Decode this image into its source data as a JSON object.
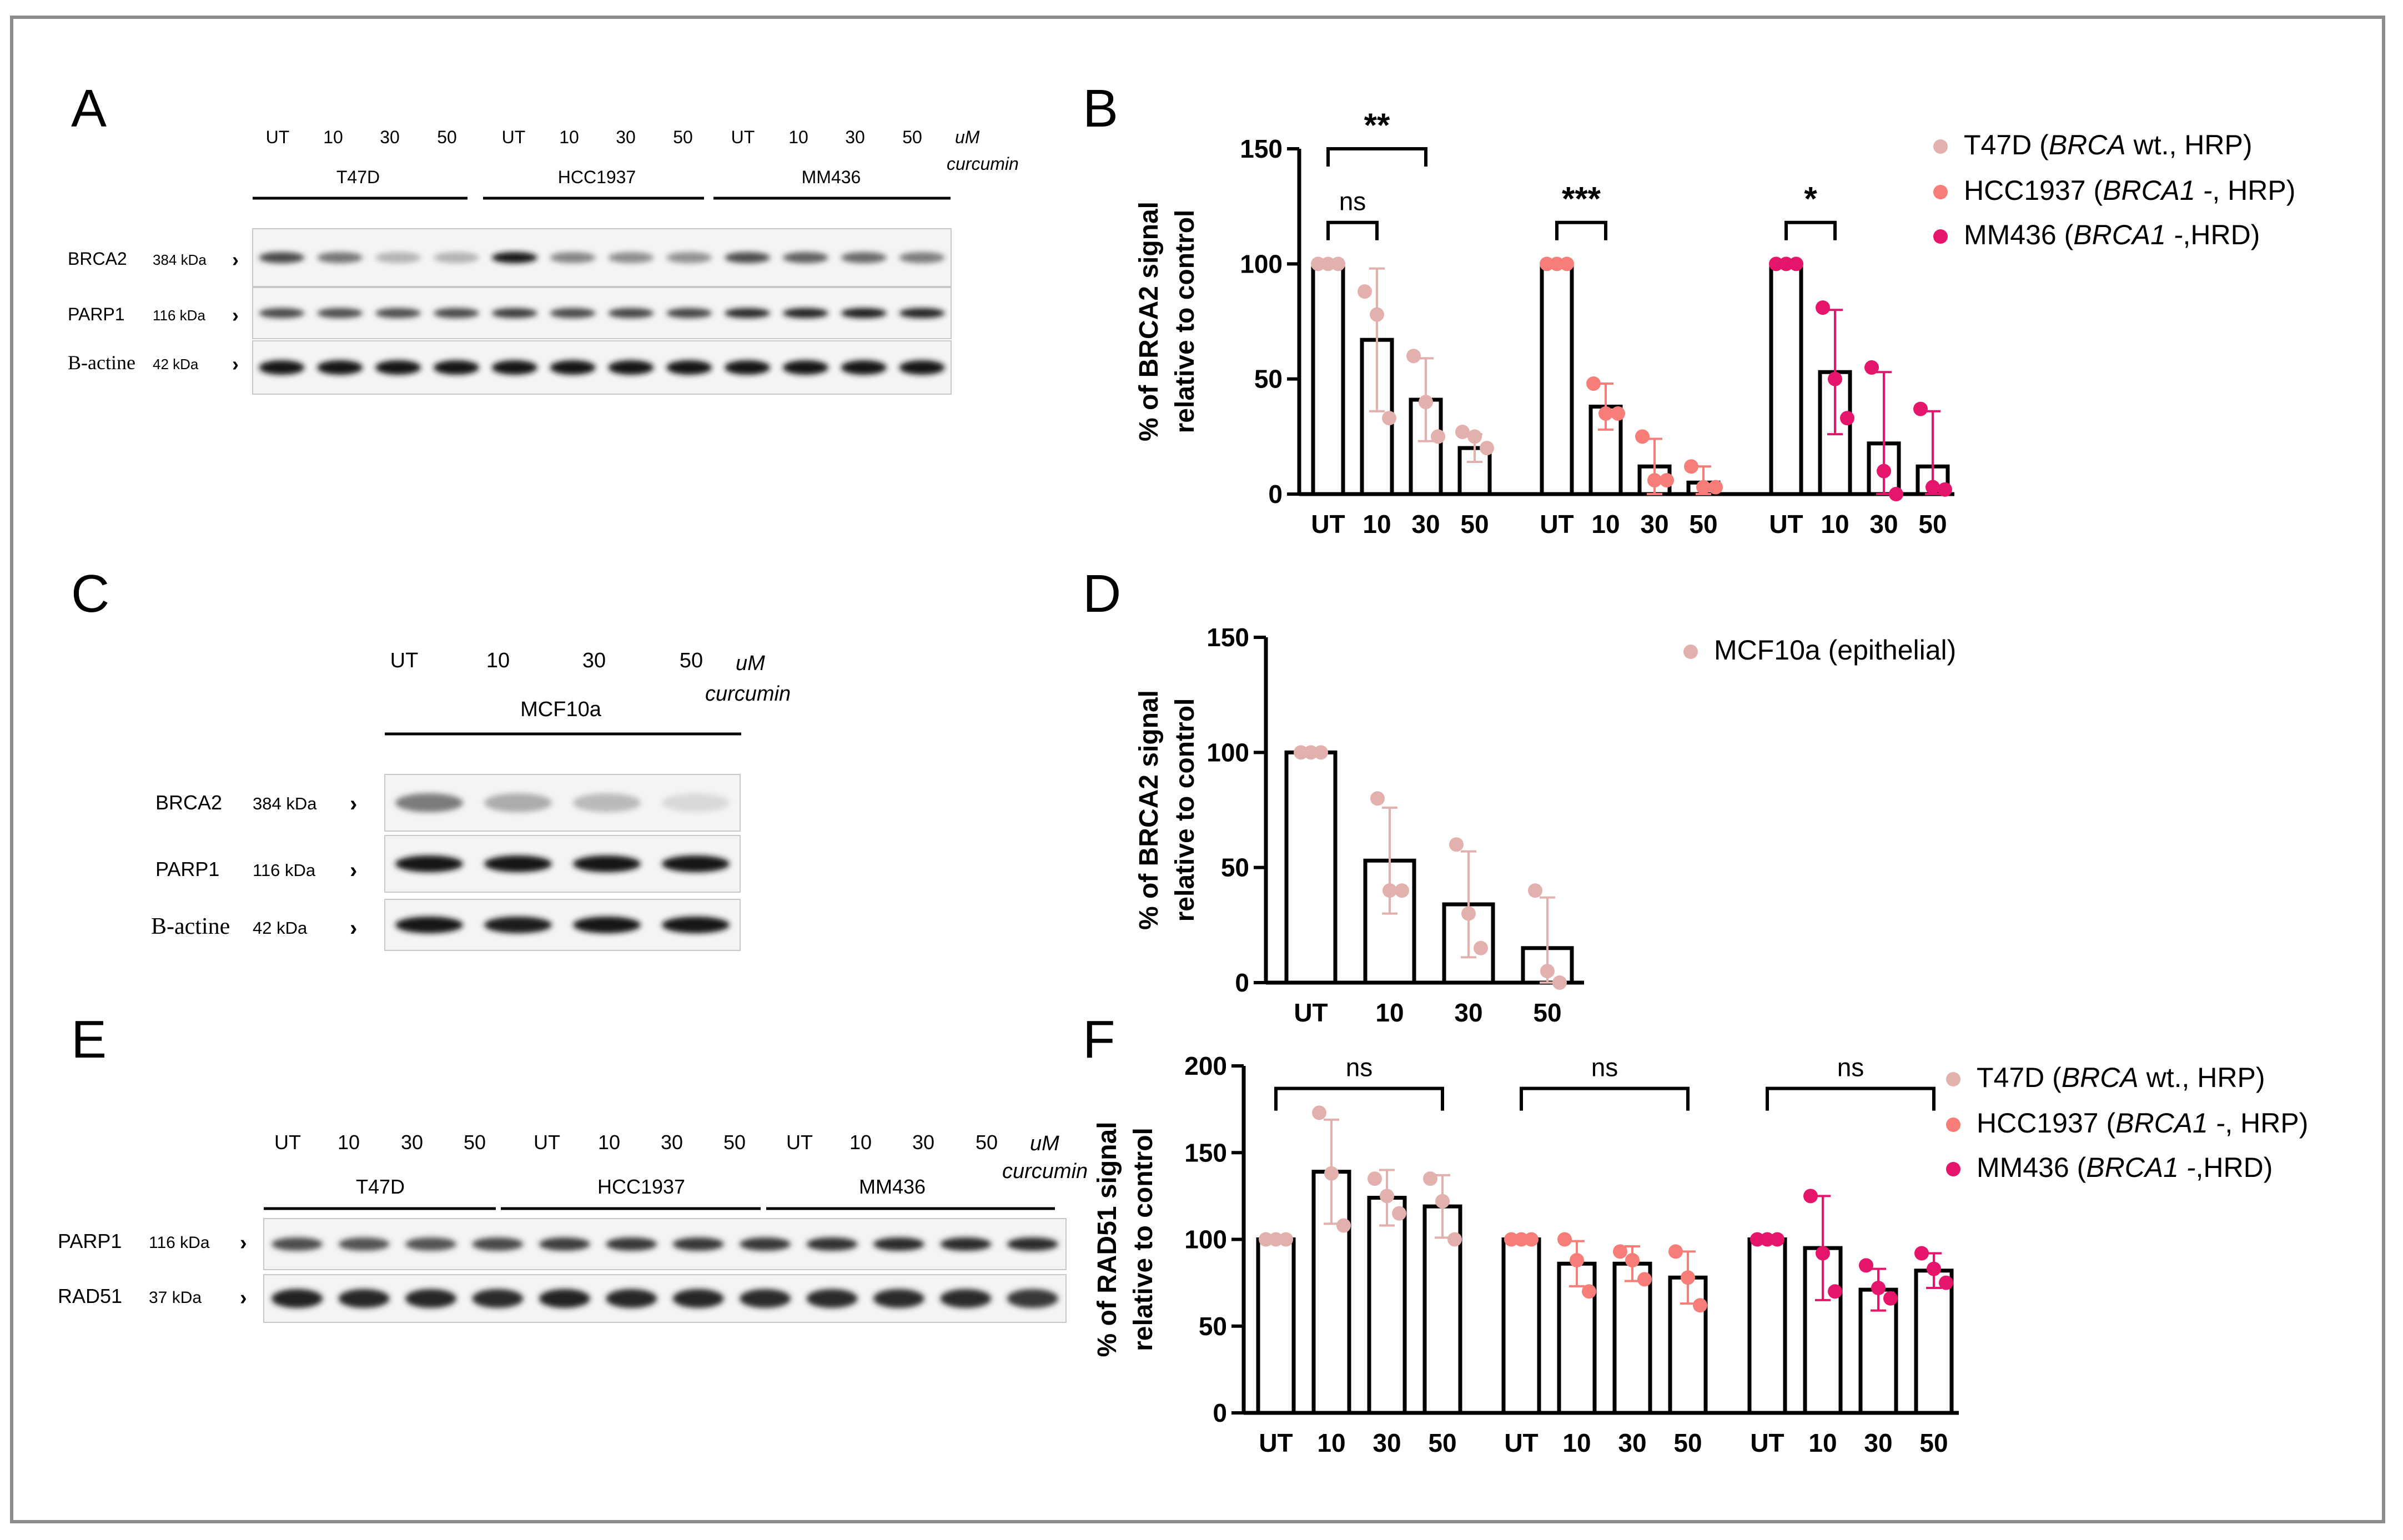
{
  "panel_letters": {
    "A": "A",
    "B": "B",
    "C": "C",
    "D": "D",
    "E": "E",
    "F": "F"
  },
  "blots": {
    "A": {
      "conc": [
        "UT",
        "10",
        "30",
        "50",
        "UT",
        "10",
        "30",
        "50",
        "UT",
        "10",
        "30",
        "50"
      ],
      "unit1": "uM",
      "unit2": "curcumin",
      "groups": [
        "T47D",
        "HCC1937",
        "MM436"
      ],
      "rows": [
        {
          "name": "BRCA2",
          "kda": "384 kDa",
          "intensity": [
            0.72,
            0.52,
            0.25,
            0.25,
            0.95,
            0.45,
            0.42,
            0.4,
            0.7,
            0.62,
            0.58,
            0.5
          ]
        },
        {
          "name": "PARP1",
          "kda": "116 kDa",
          "intensity": [
            0.72,
            0.7,
            0.7,
            0.72,
            0.78,
            0.72,
            0.74,
            0.74,
            0.85,
            0.9,
            0.92,
            0.9
          ]
        },
        {
          "name": "Β-actine",
          "kda": "42 kDa",
          "intensity": [
            0.95,
            0.95,
            0.95,
            0.95,
            0.95,
            0.95,
            0.95,
            0.95,
            0.95,
            0.95,
            0.95,
            0.95
          ]
        }
      ]
    },
    "C": {
      "conc": [
        "UT",
        "10",
        "30",
        "50"
      ],
      "unit1": "uM",
      "unit2": "curcumin",
      "groups": [
        "MCF10a"
      ],
      "rows": [
        {
          "name": "BRCA2",
          "kda": "384 kDa",
          "intensity": [
            0.5,
            0.28,
            0.22,
            0.08
          ]
        },
        {
          "name": "PARP1",
          "kda": "116 kDa",
          "intensity": [
            0.95,
            0.95,
            0.95,
            0.95
          ]
        },
        {
          "name": "Β-actine",
          "kda": "42 kDa",
          "intensity": [
            0.95,
            0.92,
            0.95,
            0.95
          ]
        }
      ]
    },
    "E": {
      "conc": [
        "UT",
        "10",
        "30",
        "50",
        "UT",
        "10",
        "30",
        "50",
        "UT",
        "10",
        "30",
        "50"
      ],
      "unit1": "uM",
      "unit2": "curcumin",
      "groups": [
        "T47D",
        "HCC1937",
        "MM436"
      ],
      "rows": [
        {
          "name": "PARP1",
          "kda": "116 kDa",
          "intensity": [
            0.7,
            0.68,
            0.68,
            0.72,
            0.78,
            0.8,
            0.8,
            0.8,
            0.82,
            0.85,
            0.85,
            0.85
          ]
        },
        {
          "name": "RAD51",
          "kda": "37 kDa",
          "intensity": [
            0.9,
            0.88,
            0.88,
            0.85,
            0.9,
            0.88,
            0.88,
            0.85,
            0.85,
            0.85,
            0.85,
            0.8
          ]
        }
      ]
    }
  },
  "colors": {
    "t47d": "#e2b1ad",
    "hcc1937": "#f67d78",
    "mm436": "#e5156b",
    "mcf10a": "#e2b1ad",
    "axis": "#000000"
  },
  "chart_data": [
    {
      "id": "B",
      "type": "bar",
      "ylabel_line1": "% of BRCA2 signal",
      "ylabel_line2": "relative to control",
      "ylim": [
        0,
        150
      ],
      "yticks": [
        "0",
        "50",
        "100",
        "150"
      ],
      "series": [
        {
          "name": "T47D",
          "legend_parts": [
            "T47D (",
            "BRCA",
            " wt., HRP)"
          ],
          "color_key": "t47d",
          "categories": [
            "UT",
            "10",
            "30",
            "50"
          ],
          "values": [
            100,
            67,
            41,
            20
          ],
          "error": [
            0,
            31,
            18,
            6
          ],
          "points": [
            [
              100,
              100,
              100
            ],
            [
              88,
              78,
              33
            ],
            [
              60,
              40,
              25
            ],
            [
              27,
              25,
              20
            ]
          ]
        },
        {
          "name": "HCC1937",
          "legend_parts": [
            "HCC1937 (",
            "BRCA1 -",
            ", HRP)"
          ],
          "color_key": "hcc1937",
          "categories": [
            "UT",
            "10",
            "30",
            "50"
          ],
          "values": [
            100,
            38,
            12,
            5
          ],
          "error": [
            0,
            10,
            12,
            7
          ],
          "points": [
            [
              100,
              100,
              100
            ],
            [
              48,
              35,
              35
            ],
            [
              25,
              6,
              6
            ],
            [
              12,
              3,
              3
            ]
          ]
        },
        {
          "name": "MM436",
          "legend_parts": [
            "MM436 (",
            "BRCA1 -",
            ",HRD)"
          ],
          "color_key": "mm436",
          "categories": [
            "UT",
            "10",
            "30",
            "50"
          ],
          "values": [
            100,
            53,
            22,
            12
          ],
          "error": [
            0,
            27,
            31,
            24
          ],
          "points": [
            [
              100,
              100,
              100
            ],
            [
              81,
              50,
              33
            ],
            [
              55,
              10,
              0
            ],
            [
              37,
              3,
              2
            ]
          ]
        }
      ],
      "significance": [
        {
          "group": 0,
          "from": 0,
          "to": 2,
          "level": 150,
          "label": "**"
        },
        {
          "group": 0,
          "from": 0,
          "to": 1,
          "level": 118,
          "label": "ns"
        },
        {
          "group": 1,
          "from": 0,
          "to": 1,
          "level": 118,
          "label": "***"
        },
        {
          "group": 2,
          "from": 0,
          "to": 1,
          "level": 118,
          "label": "*"
        }
      ]
    },
    {
      "id": "D",
      "type": "bar",
      "ylabel_line1": "% of BRCA2 signal",
      "ylabel_line2": "relative to control",
      "ylim": [
        0,
        150
      ],
      "yticks": [
        "0",
        "50",
        "100",
        "150"
      ],
      "series": [
        {
          "name": "MCF10a",
          "legend_parts": [
            "MCF10a (epithelial)",
            "",
            ""
          ],
          "color_key": "mcf10a",
          "categories": [
            "UT",
            "10",
            "30",
            "50"
          ],
          "values": [
            100,
            53,
            34,
            15
          ],
          "error": [
            0,
            23,
            23,
            22
          ],
          "points": [
            [
              100,
              100,
              100
            ],
            [
              80,
              40,
              40
            ],
            [
              60,
              30,
              15
            ],
            [
              40,
              5,
              0
            ]
          ]
        }
      ],
      "significance": []
    },
    {
      "id": "F",
      "type": "bar",
      "ylabel_line1": "% of RAD51 signal",
      "ylabel_line2": "relative to control",
      "ylim": [
        0,
        200
      ],
      "yticks": [
        "0",
        "50",
        "100",
        "150",
        "200"
      ],
      "series": [
        {
          "name": "T47D",
          "legend_parts": [
            "T47D (",
            "BRCA",
            " wt., HRP)"
          ],
          "color_key": "t47d",
          "categories": [
            "UT",
            "10",
            "30",
            "50"
          ],
          "values": [
            100,
            139,
            124,
            119
          ],
          "error": [
            0,
            30,
            16,
            18
          ],
          "points": [
            [
              100,
              100,
              100
            ],
            [
              173,
              138,
              108
            ],
            [
              135,
              125,
              115
            ],
            [
              135,
              122,
              100
            ]
          ]
        },
        {
          "name": "HCC1937",
          "legend_parts": [
            "HCC1937 (",
            "BRCA1 -",
            ", HRP)"
          ],
          "color_key": "hcc1937",
          "categories": [
            "UT",
            "10",
            "30",
            "50"
          ],
          "values": [
            100,
            86,
            86,
            78
          ],
          "error": [
            0,
            13,
            10,
            15
          ],
          "points": [
            [
              100,
              100,
              100
            ],
            [
              100,
              88,
              70
            ],
            [
              93,
              88,
              77
            ],
            [
              93,
              78,
              62
            ]
          ]
        },
        {
          "name": "MM436",
          "legend_parts": [
            "MM436 (",
            "BRCA1 -",
            ",HRD)"
          ],
          "color_key": "mm436",
          "categories": [
            "UT",
            "10",
            "30",
            "50"
          ],
          "values": [
            100,
            95,
            71,
            82
          ],
          "error": [
            0,
            30,
            12,
            10
          ],
          "points": [
            [
              100,
              100,
              100
            ],
            [
              125,
              92,
              70
            ],
            [
              85,
              72,
              66
            ],
            [
              92,
              83,
              75
            ]
          ]
        }
      ],
      "significance": [
        {
          "group": 0,
          "from": 0,
          "to": 3,
          "level": 187,
          "label": "ns"
        },
        {
          "group": 1,
          "from": 0,
          "to": 3,
          "level": 187,
          "label": "ns"
        },
        {
          "group": 2,
          "from": 0,
          "to": 3,
          "level": 187,
          "label": "ns"
        }
      ]
    }
  ]
}
